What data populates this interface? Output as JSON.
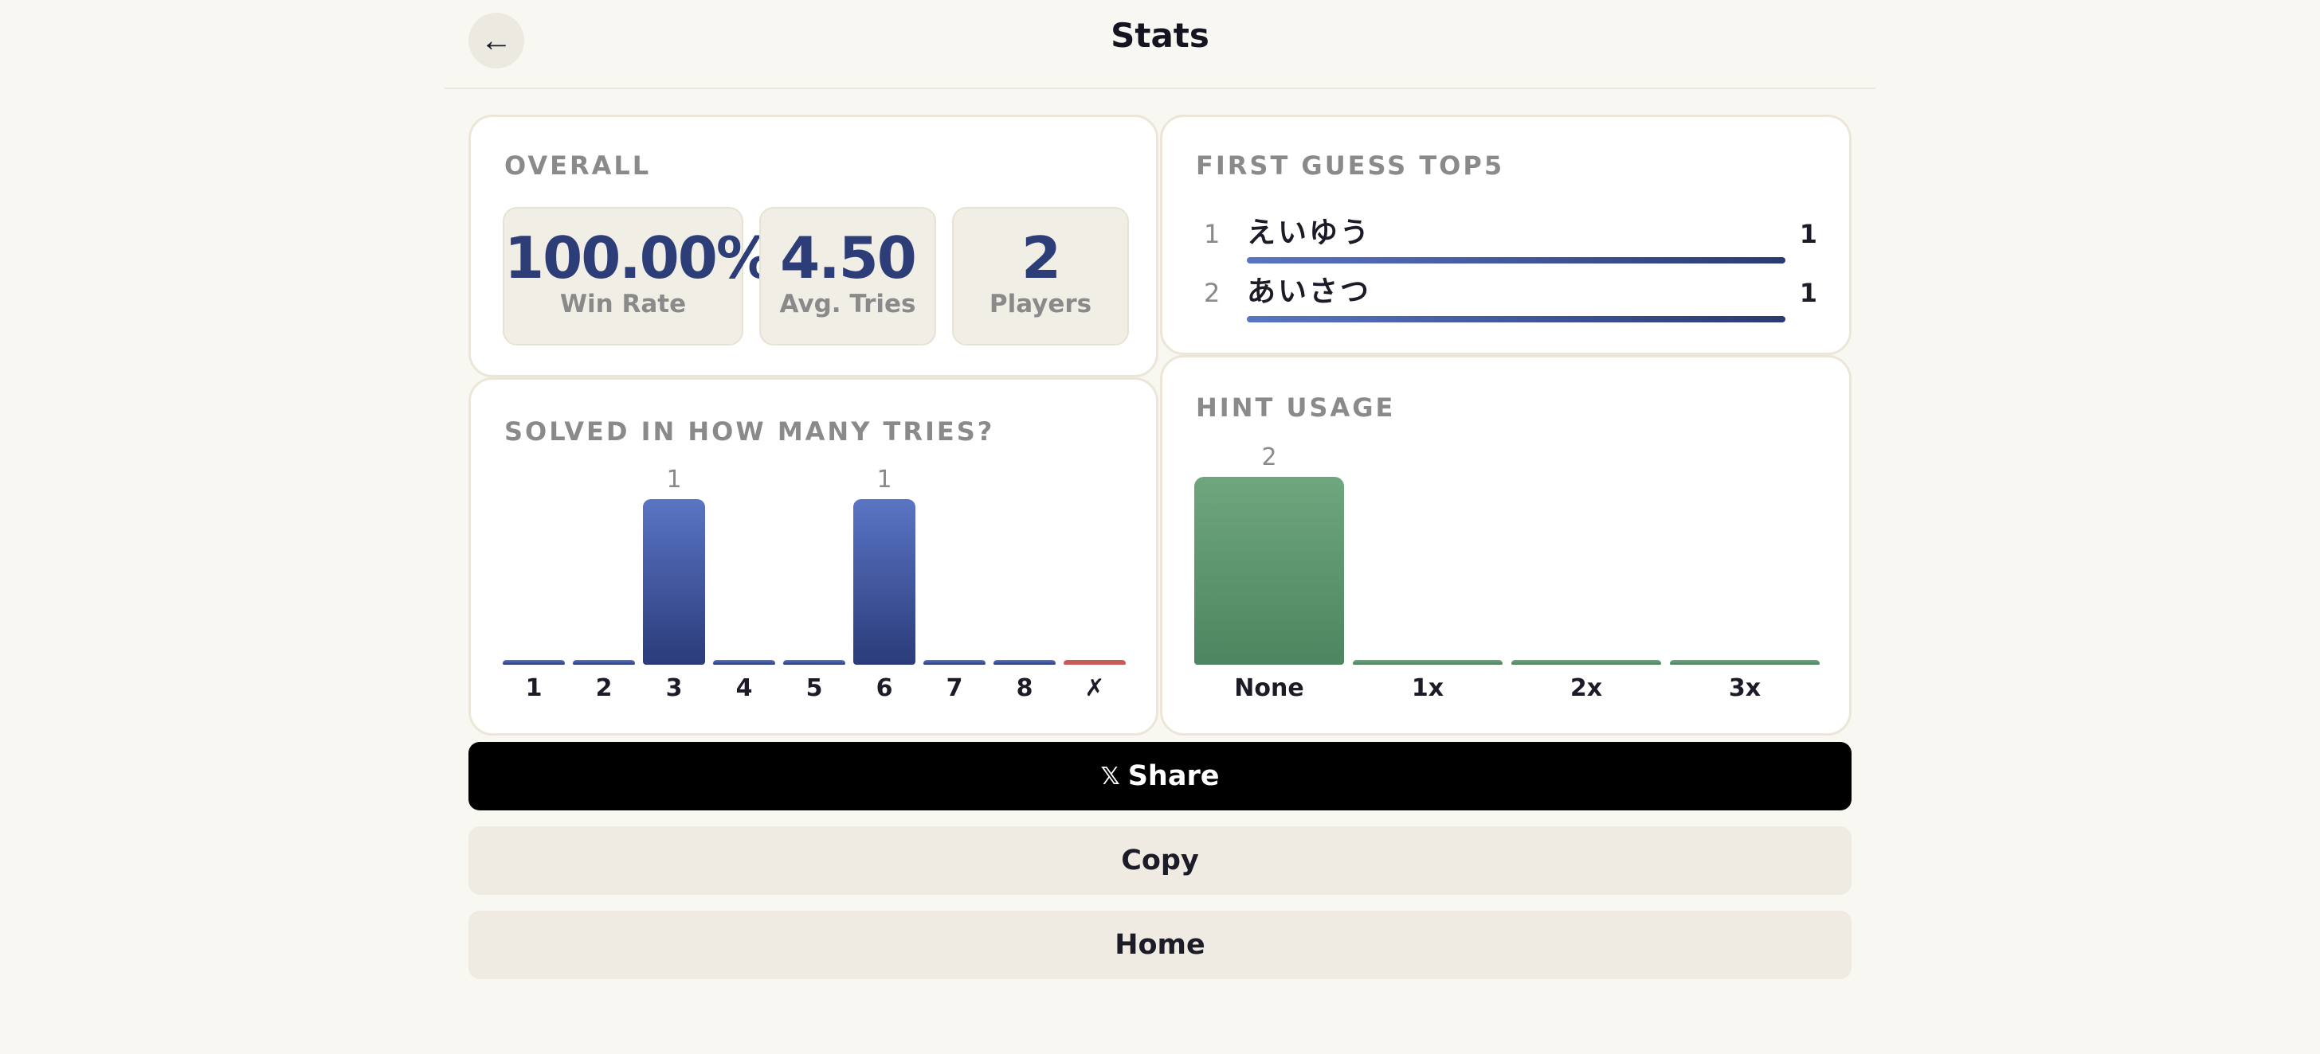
{
  "header": {
    "title": "Stats",
    "back_icon": "←"
  },
  "overall": {
    "title": "OVERALL",
    "stats": [
      {
        "value": "100.00%",
        "label": "Win Rate"
      },
      {
        "value": "4.50",
        "label": "Avg. Tries"
      },
      {
        "value": "2",
        "label": "Players"
      }
    ]
  },
  "first_guess": {
    "title": "FIRST GUESS TOP5",
    "items": [
      {
        "rank": "1",
        "word": "えいゆう",
        "count": "1"
      },
      {
        "rank": "2",
        "word": "あいさつ",
        "count": "1"
      }
    ]
  },
  "tries": {
    "title": "SOLVED IN HOW MANY TRIES?",
    "value_labels": [
      "1",
      "1"
    ]
  },
  "hints": {
    "title": "HINT USAGE",
    "value_labels": [
      "2"
    ]
  },
  "chart_data": [
    {
      "type": "bar",
      "title": "SOLVED IN HOW MANY TRIES?",
      "categories": [
        "1",
        "2",
        "3",
        "4",
        "5",
        "6",
        "7",
        "8",
        "✗"
      ],
      "values": [
        0,
        0,
        1,
        0,
        0,
        1,
        0,
        0,
        0
      ],
      "colors": {
        "bar": "#3e55a0",
        "fail": "#c75a5a"
      }
    },
    {
      "type": "bar",
      "title": "HINT USAGE",
      "categories": [
        "None",
        "1x",
        "2x",
        "3x"
      ],
      "values": [
        2,
        0,
        0,
        0
      ],
      "colors": {
        "bar": "#5e9670"
      }
    }
  ],
  "actions": {
    "share_icon": "𝕏",
    "share_label": "Share",
    "copy_label": "Copy",
    "home_label": "Home"
  },
  "colors": {
    "background": "#f9f7f1",
    "accent": "#2c3d78",
    "muted": "#8a8a8a"
  }
}
